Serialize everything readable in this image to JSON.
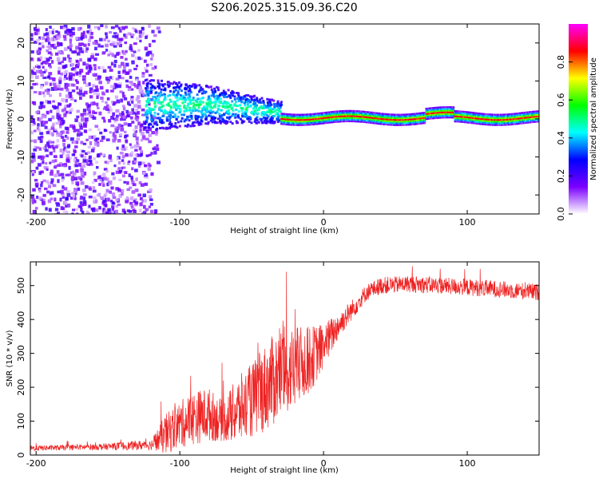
{
  "chart_data": [
    {
      "type": "heatmap",
      "title": "S206.2025.315.09.36.C20",
      "xlabel": "Height of straight line (km)",
      "ylabel": "Frequency (Hz)",
      "xlim": [
        -204,
        150
      ],
      "ylim": [
        -25,
        25
      ],
      "xticks": [
        -200,
        -100,
        0,
        100
      ],
      "xtick_labels": [
        "-200",
        "-100",
        "0",
        "100"
      ],
      "yticks": [
        -20,
        -10,
        0,
        10,
        20
      ],
      "ytick_labels": [
        "-20",
        "-10",
        "0",
        "10",
        "20"
      ],
      "colorbar": {
        "label": "Normalized spectral amplitude",
        "range": [
          0,
          1
        ],
        "ticks": [
          0.0,
          0.2,
          0.4,
          0.6,
          0.8
        ],
        "tick_labels": [
          "0.0",
          "0.2",
          "0.4",
          "0.6",
          "0.8"
        ],
        "colors": [
          "#ffffff",
          "#7b00ff",
          "#0000ff",
          "#00ffff",
          "#00ff00",
          "#ffff00",
          "#ff0000",
          "#ff00ff"
        ]
      },
      "regions": [
        {
          "name": "noise",
          "x_range": [
            -204,
            -112
          ],
          "freq_range": [
            -25,
            25
          ],
          "amplitude": 0.15
        },
        {
          "name": "onset",
          "x_range": [
            -125,
            -30
          ],
          "freq_center": [
            4,
            4,
            2
          ],
          "amplitude": 0.35
        },
        {
          "name": "ridge",
          "x_range": [
            -30,
            150
          ],
          "freq_center": 0.5,
          "amplitude": 0.85
        }
      ]
    },
    {
      "type": "line",
      "xlabel": "Height of straight line (km)",
      "ylabel": "SNR (10 * v/v)",
      "xlim": [
        -204,
        150
      ],
      "ylim": [
        0,
        570
      ],
      "xticks": [
        -200,
        -100,
        0,
        100
      ],
      "xtick_labels": [
        "-200",
        "-100",
        "0",
        "100"
      ],
      "yticks": [
        0,
        100,
        200,
        300,
        400,
        500
      ],
      "ytick_labels": [
        "0",
        "100",
        "200",
        "300",
        "400",
        "500"
      ],
      "series": [
        {
          "name": "SNR",
          "color": "#ee2222",
          "x": [
            -204,
            -180,
            -150,
            -120,
            -110,
            -100,
            -90,
            -80,
            -70,
            -60,
            -50,
            -40,
            -30,
            -20,
            -10,
            0,
            10,
            20,
            30,
            40,
            60,
            80,
            100,
            120,
            150
          ],
          "values": [
            20,
            22,
            25,
            30,
            60,
            90,
            110,
            120,
            100,
            130,
            160,
            200,
            240,
            260,
            280,
            320,
            380,
            430,
            480,
            500,
            505,
            500,
            495,
            490,
            480
          ],
          "noise": [
            8,
            8,
            10,
            15,
            60,
            70,
            80,
            80,
            60,
            100,
            110,
            130,
            140,
            120,
            100,
            70,
            40,
            30,
            25,
            25,
            25,
            25,
            25,
            25,
            25
          ]
        }
      ]
    }
  ]
}
